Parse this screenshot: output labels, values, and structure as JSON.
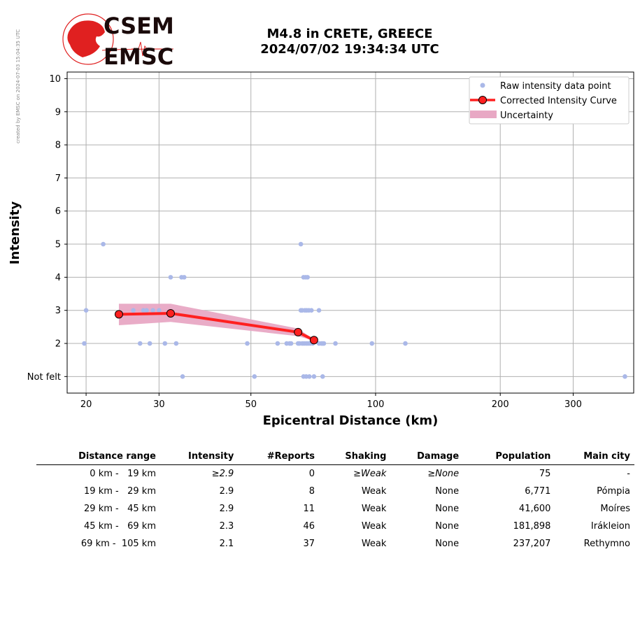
{
  "credit": "created by EMSC on 2024-07-03 15:04:35 UTC",
  "logo": {
    "line1": "CSEM",
    "line2": "EMSC"
  },
  "title": {
    "line1": "M4.8 in CRETE, GREECE",
    "line2": "2024/07/02 19:34:34 UTC"
  },
  "chart_data": {
    "type": "scatter",
    "x_scale": "log",
    "xlim": [
      18,
      420
    ],
    "ylim": [
      0.5,
      10.2
    ],
    "xlabel": "Epicentral Distance (km)",
    "ylabel": "Intensity",
    "x_ticks": [
      {
        "v": 20,
        "label": "20"
      },
      {
        "v": 30,
        "label": "30"
      },
      {
        "v": 50,
        "label": "50"
      },
      {
        "v": 100,
        "label": "100"
      },
      {
        "v": 200,
        "label": "200"
      },
      {
        "v": 300,
        "label": "300"
      }
    ],
    "y_ticks": [
      {
        "v": 1,
        "label": "Not felt"
      },
      {
        "v": 2,
        "label": "2"
      },
      {
        "v": 3,
        "label": "3"
      },
      {
        "v": 4,
        "label": "4"
      },
      {
        "v": 5,
        "label": "5"
      },
      {
        "v": 6,
        "label": "6"
      },
      {
        "v": 7,
        "label": "7"
      },
      {
        "v": 8,
        "label": "8"
      },
      {
        "v": 9,
        "label": "9"
      },
      {
        "v": 10,
        "label": "10"
      }
    ],
    "grid": true,
    "legend_position": "top-right",
    "legend": [
      "Raw intensity data point",
      "Corrected Intensity Curve",
      "Uncertainty"
    ],
    "colors": {
      "raw": "#aab8e8",
      "curve": "#ff2020",
      "marker": "#ff2020",
      "uncertainty": "#e8a8c4"
    },
    "raw_points": [
      [
        19.8,
        2
      ],
      [
        20,
        3
      ],
      [
        22,
        5
      ],
      [
        26,
        3
      ],
      [
        27,
        2
      ],
      [
        27.5,
        3
      ],
      [
        28,
        3
      ],
      [
        28.5,
        2
      ],
      [
        29,
        3
      ],
      [
        30,
        3
      ],
      [
        31,
        2
      ],
      [
        32,
        4
      ],
      [
        33,
        2
      ],
      [
        34,
        4
      ],
      [
        34.2,
        1
      ],
      [
        34.5,
        4
      ],
      [
        49,
        2
      ],
      [
        51,
        1
      ],
      [
        58,
        2
      ],
      [
        61,
        2
      ],
      [
        62,
        2
      ],
      [
        62.5,
        2
      ],
      [
        65,
        2
      ],
      [
        65.5,
        2
      ],
      [
        66,
        5
      ],
      [
        66,
        3
      ],
      [
        66.5,
        2
      ],
      [
        66.5,
        3
      ],
      [
        67,
        4
      ],
      [
        67,
        1
      ],
      [
        67.2,
        2
      ],
      [
        67.5,
        3
      ],
      [
        67.8,
        4
      ],
      [
        68,
        2
      ],
      [
        68,
        1
      ],
      [
        68.2,
        3
      ],
      [
        68.5,
        4
      ],
      [
        68.7,
        2
      ],
      [
        69,
        3
      ],
      [
        69.2,
        1
      ],
      [
        69.5,
        2
      ],
      [
        70,
        3
      ],
      [
        70.5,
        2
      ],
      [
        71,
        1
      ],
      [
        73,
        3
      ],
      [
        73,
        2
      ],
      [
        74,
        2
      ],
      [
        74.5,
        1
      ],
      [
        74.5,
        2
      ],
      [
        75,
        2
      ],
      [
        80,
        2
      ],
      [
        98,
        2
      ],
      [
        118,
        2
      ],
      [
        400,
        1
      ]
    ],
    "series": [
      {
        "name": "Corrected Intensity Curve",
        "x": [
          24,
          32,
          65,
          71
        ],
        "y": [
          2.88,
          2.91,
          2.34,
          2.1
        ]
      }
    ],
    "uncertainty": {
      "x": [
        24,
        32,
        65,
        71
      ],
      "upper": [
        3.2,
        3.2,
        2.45,
        2.12
      ],
      "lower": [
        2.55,
        2.65,
        2.22,
        2.08
      ]
    }
  },
  "table": {
    "headers": [
      "Distance range",
      "Intensity",
      "#Reports",
      "Shaking",
      "Damage",
      "Population",
      "Main city"
    ],
    "rows": [
      [
        "0 km -   19 km",
        "≥2.9",
        "0",
        "≥Weak",
        "≥None",
        "75",
        "-"
      ],
      [
        "19 km -   29 km",
        "2.9",
        "8",
        "Weak",
        "None",
        "6,771",
        "Pómpia"
      ],
      [
        "29 km -   45 km",
        "2.9",
        "11",
        "Weak",
        "None",
        "41,600",
        "Moíres"
      ],
      [
        "45 km -   69 km",
        "2.3",
        "46",
        "Weak",
        "None",
        "181,898",
        "Irákleion"
      ],
      [
        "69 km -  105 km",
        "2.1",
        "37",
        "Weak",
        "None",
        "237,207",
        "Rethymno"
      ]
    ]
  }
}
